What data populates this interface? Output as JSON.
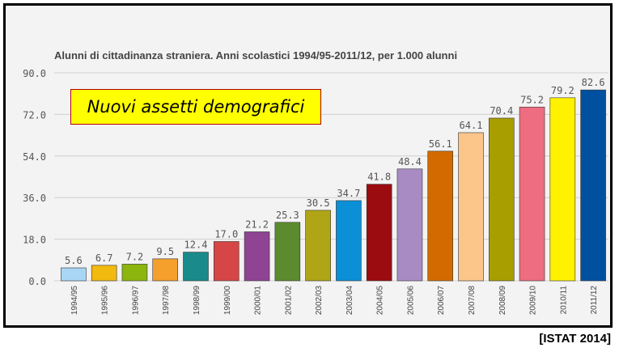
{
  "chart_data": {
    "type": "bar",
    "title": "Alunni di cittadinanza straniera. Anni scolastici 1994/95-2011/12, per 1.000 alunni",
    "xlabel": "",
    "ylabel": "",
    "ylim": [
      0,
      90
    ],
    "yticks": [
      "0.0",
      "18.0",
      "36.0",
      "54.0",
      "72.0",
      "90.0"
    ],
    "grid": true,
    "categories": [
      "1994/95",
      "1995/96",
      "1996/97",
      "1997/98",
      "1998/99",
      "1999/00",
      "2000/01",
      "2001/02",
      "2002/03",
      "2003/04",
      "2004/05",
      "2005/06",
      "2006/07",
      "2007/08",
      "2008/09",
      "2009/10",
      "2010/11",
      "2011/12"
    ],
    "values": [
      5.6,
      6.7,
      7.2,
      9.5,
      12.4,
      17.0,
      21.2,
      25.3,
      30.5,
      34.7,
      41.8,
      48.4,
      56.1,
      64.1,
      70.4,
      75.2,
      79.2,
      82.6
    ],
    "value_labels": [
      "5.6",
      "6.7",
      "7.2",
      "9.5",
      "12.4",
      "17.0",
      "21.2",
      "25.3",
      "30.5",
      "34.7",
      "41.8",
      "48.4",
      "56.1",
      "64.1",
      "70.4",
      "75.2",
      "79.2",
      "82.6"
    ],
    "colors": [
      "#a9d6f5",
      "#f2b90f",
      "#8cb50e",
      "#f59f2c",
      "#1a8a8a",
      "#d64646",
      "#8e4493",
      "#5c8a2e",
      "#b0a516",
      "#0b8fd6",
      "#9b0c10",
      "#a98bc4",
      "#d26a00",
      "#fcc58a",
      "#a99e00",
      "#ee6d80",
      "#fff200",
      "#0050a0"
    ]
  },
  "callout": {
    "text": "Nuovi assetti demografici"
  },
  "source": {
    "text": "[ISTAT 2014]"
  }
}
